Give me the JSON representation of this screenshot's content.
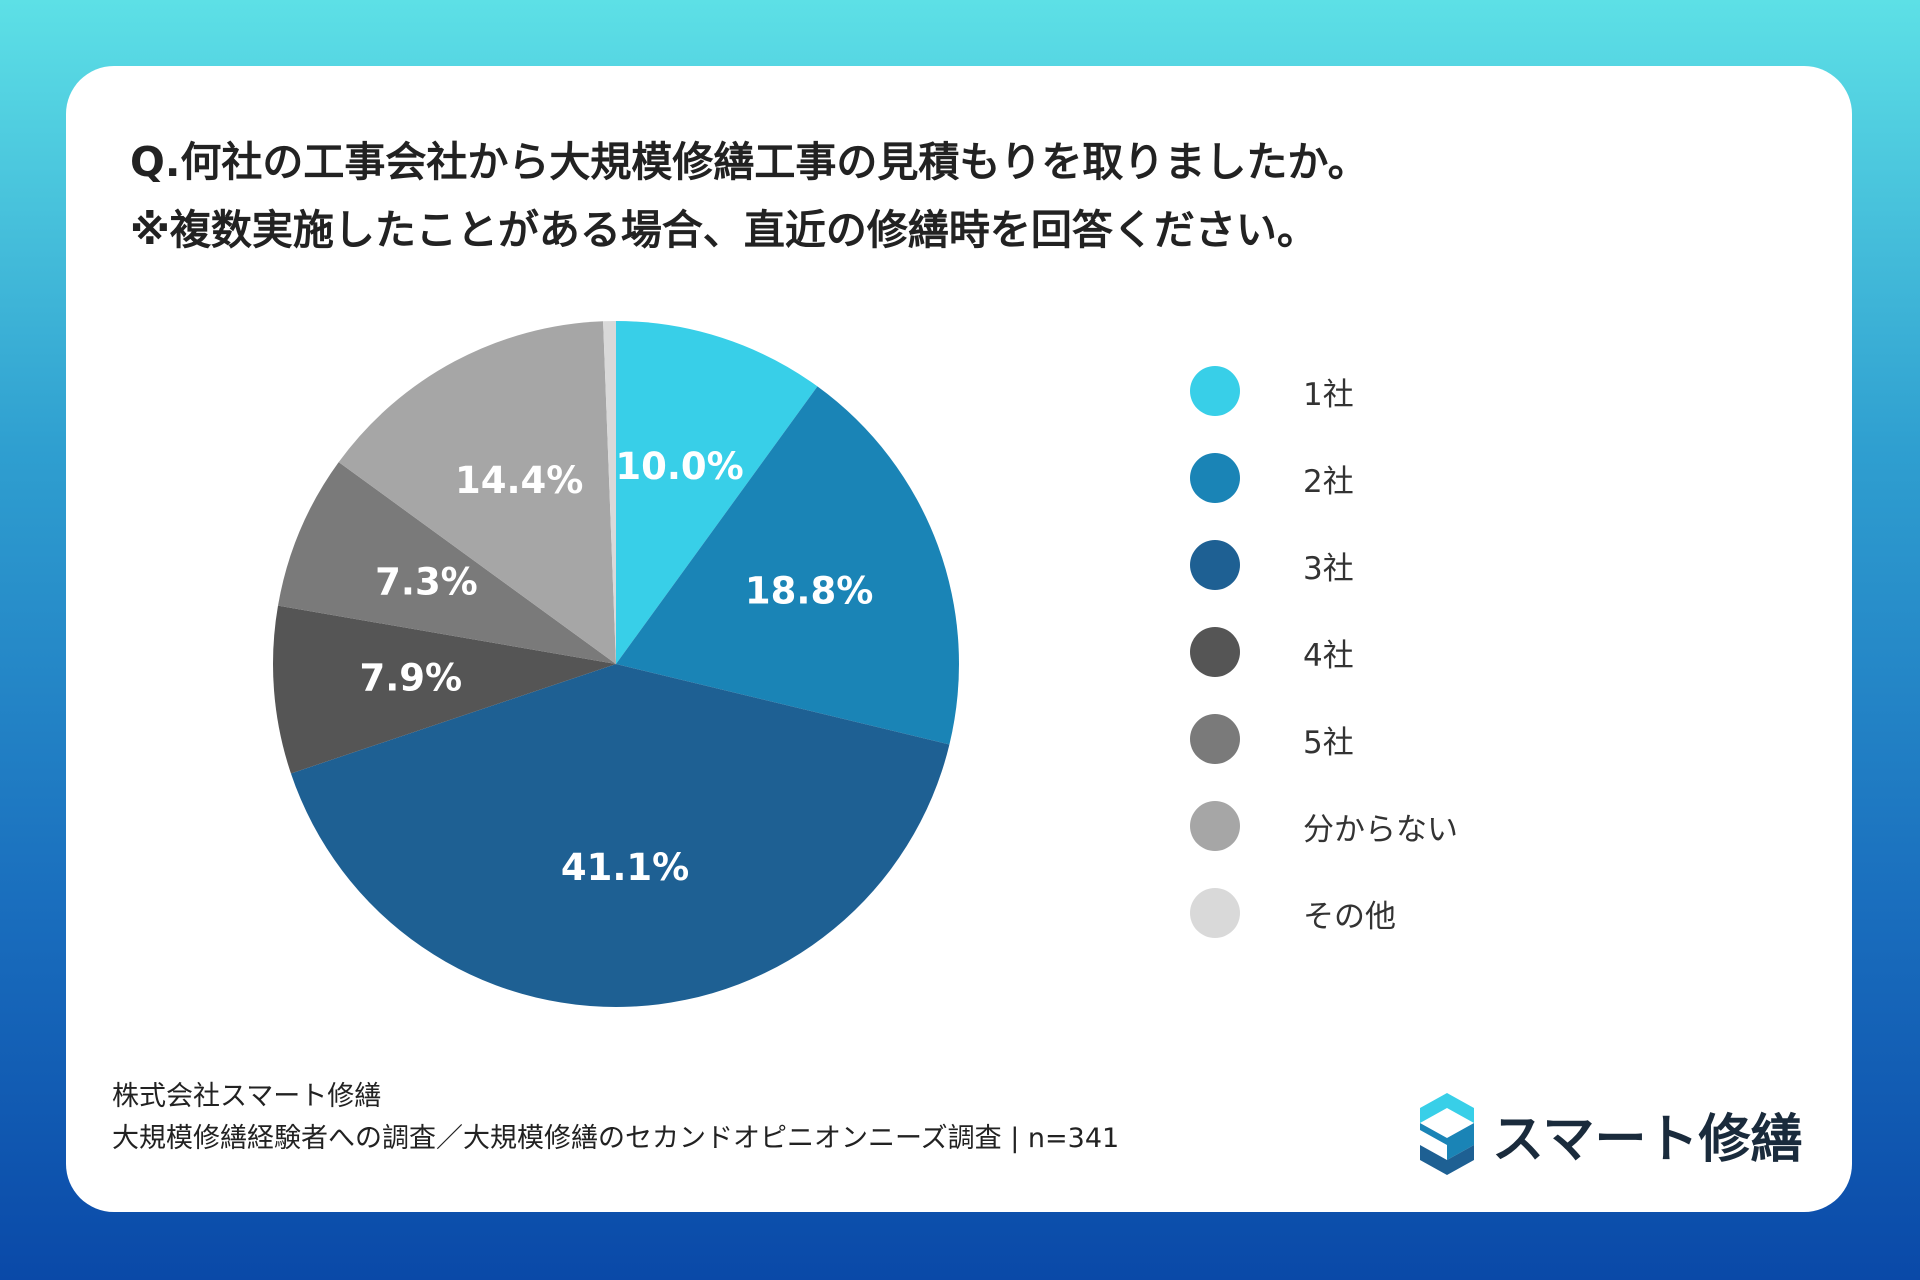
{
  "title": {
    "line1": "Q.何社の工事会社から大規模修繕工事の見積もりを取りましたか。",
    "line2": "※複数実施したことがある場合、直近の修繕時を回答ください。"
  },
  "chart_data": {
    "type": "pie",
    "categories": [
      "1社",
      "2社",
      "3社",
      "4社",
      "5社",
      "分からない",
      "その他"
    ],
    "values": [
      10.0,
      18.8,
      41.1,
      7.9,
      7.3,
      14.4,
      0.6
    ],
    "labels": [
      "10.0%",
      "18.8%",
      "41.1%",
      "7.9%",
      "7.3%",
      "14.4%",
      ""
    ],
    "colors": [
      "#38cfe8",
      "#1a84b6",
      "#1e6093",
      "#555555",
      "#7a7a7a",
      "#a6a6a6",
      "#d9d9d9"
    ],
    "legend_position": "right"
  },
  "footer": {
    "company": "株式会社スマート修繕",
    "survey": "大規模修繕経験者への調査／大規模修繕のセカンドオピニオンニーズ調査 | n=341"
  },
  "logo": {
    "text": "スマート修繕",
    "icon": "s-logo-icon"
  }
}
